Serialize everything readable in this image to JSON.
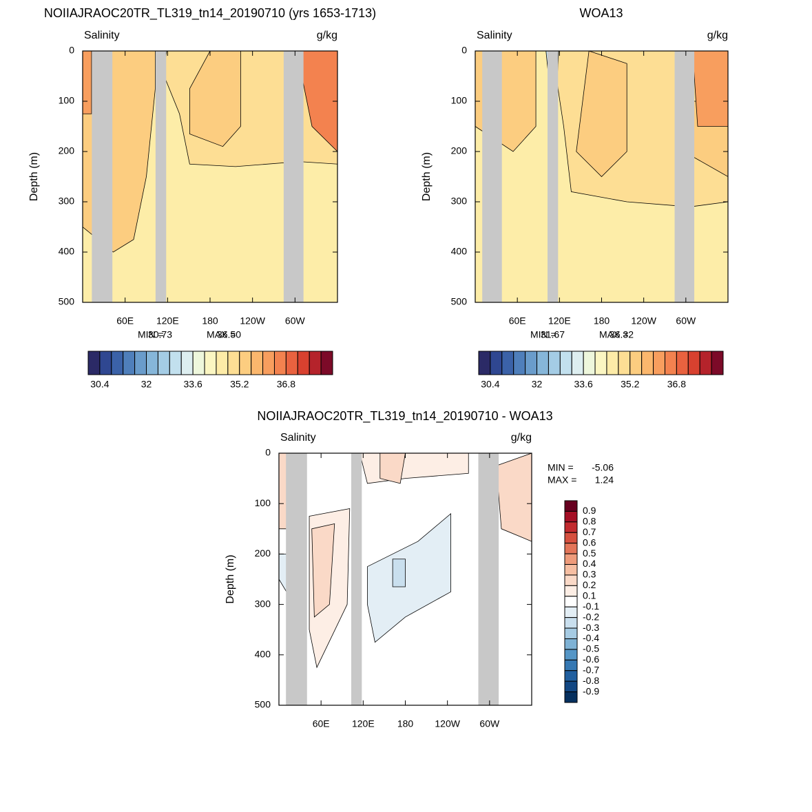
{
  "chart_data": [
    {
      "type": "contour",
      "title": "NOIIAJRAOC20TR_TL319_tn14_20190710 (yrs 1653-1713)",
      "subtitle_left": "Salinity",
      "subtitle_right": "g/kg",
      "y_label": "Depth (m)",
      "ylim": [
        0,
        500
      ],
      "yticks": [
        0,
        100,
        200,
        300,
        400,
        500
      ],
      "xlim": [
        0,
        360
      ],
      "xticks": [
        {
          "value": 60,
          "label": "60E"
        },
        {
          "value": 120,
          "label": "120E"
        },
        180,
        {
          "value": 240,
          "label": "120W"
        },
        {
          "value": 300,
          "label": "60W"
        }
      ],
      "stats": [
        {
          "name": "MIN =",
          "value": 30.73
        },
        {
          "name": "MAX =",
          "value": 36.5,
          "label": "36.50"
        }
      ],
      "colorbar": {
        "orientation": "horizontal",
        "lim": [
          30.0,
          38.4
        ],
        "ticks": [
          30.4,
          32,
          33.6,
          35.2,
          36.8
        ],
        "colors": [
          "#2b2a66",
          "#2f4791",
          "#3b62a8",
          "#4f7fbb",
          "#6a9ccb",
          "#86b6d9",
          "#a4cce5",
          "#c2e0ee",
          "#ddeef0",
          "#eef7dc",
          "#fbf6c2",
          "#fdeba7",
          "#fdde94",
          "#fccd80",
          "#fbb76d",
          "#f89e5e",
          "#f3824f",
          "#e9623f",
          "#d8412f",
          "#b5232b",
          "#7c0a28"
        ]
      }
    },
    {
      "type": "contour",
      "title": "WOA13",
      "subtitle_left": "Salinity",
      "subtitle_right": "g/kg",
      "y_label": "Depth (m)",
      "ylim": [
        0,
        500
      ],
      "yticks": [
        0,
        100,
        200,
        300,
        400,
        500
      ],
      "xlim": [
        0,
        360
      ],
      "xticks": [
        {
          "value": 60,
          "label": "60E"
        },
        {
          "value": 120,
          "label": "120E"
        },
        180,
        {
          "value": 240,
          "label": "120W"
        },
        {
          "value": 300,
          "label": "60W"
        }
      ],
      "stats": [
        {
          "name": "MIN =",
          "value": 31.67
        },
        {
          "name": "MAX =",
          "value": 36.32
        }
      ],
      "colorbar": {
        "orientation": "horizontal",
        "lim": [
          30.0,
          38.4
        ],
        "ticks": [
          30.4,
          32,
          33.6,
          35.2,
          36.8
        ],
        "colors": [
          "#2b2a66",
          "#2f4791",
          "#3b62a8",
          "#4f7fbb",
          "#6a9ccb",
          "#86b6d9",
          "#a4cce5",
          "#c2e0ee",
          "#ddeef0",
          "#eef7dc",
          "#fbf6c2",
          "#fdeba7",
          "#fdde94",
          "#fccd80",
          "#fbb76d",
          "#f89e5e",
          "#f3824f",
          "#e9623f",
          "#d8412f",
          "#b5232b",
          "#7c0a28"
        ]
      }
    },
    {
      "type": "contour",
      "title": "NOIIAJRAOC20TR_TL319_tn14_20190710 - WOA13",
      "subtitle_left": "Salinity",
      "subtitle_right": "g/kg",
      "y_label": "Depth (m)",
      "ylim": [
        0,
        500
      ],
      "yticks": [
        0,
        100,
        200,
        300,
        400,
        500
      ],
      "xlim": [
        0,
        360
      ],
      "xticks": [
        {
          "value": 60,
          "label": "60E"
        },
        {
          "value": 120,
          "label": "120E"
        },
        180,
        {
          "value": 240,
          "label": "120W"
        },
        {
          "value": 300,
          "label": "60W"
        }
      ],
      "stats": [
        {
          "name": "MIN =",
          "value": -5.06
        },
        {
          "name": "MAX =",
          "value": 1.24
        }
      ],
      "colorbar": {
        "orientation": "vertical",
        "ticks": [
          0.9,
          0.8,
          0.7,
          0.6,
          0.5,
          0.4,
          0.3,
          0.2,
          0.1,
          -0.1,
          -0.2,
          -0.3,
          -0.4,
          -0.5,
          -0.6,
          -0.7,
          -0.8,
          -0.9
        ],
        "colors": [
          "#67001f",
          "#a50f25",
          "#c22a2e",
          "#d6503f",
          "#e37559",
          "#ee9b7b",
          "#f6bea2",
          "#fad9c7",
          "#fdeee5",
          "#ffffff",
          "#e3eef5",
          "#c9dfee",
          "#a6cbe3",
          "#7eb2d5",
          "#5596c6",
          "#3578b3",
          "#205f9f",
          "#124783",
          "#06305f"
        ]
      }
    }
  ]
}
